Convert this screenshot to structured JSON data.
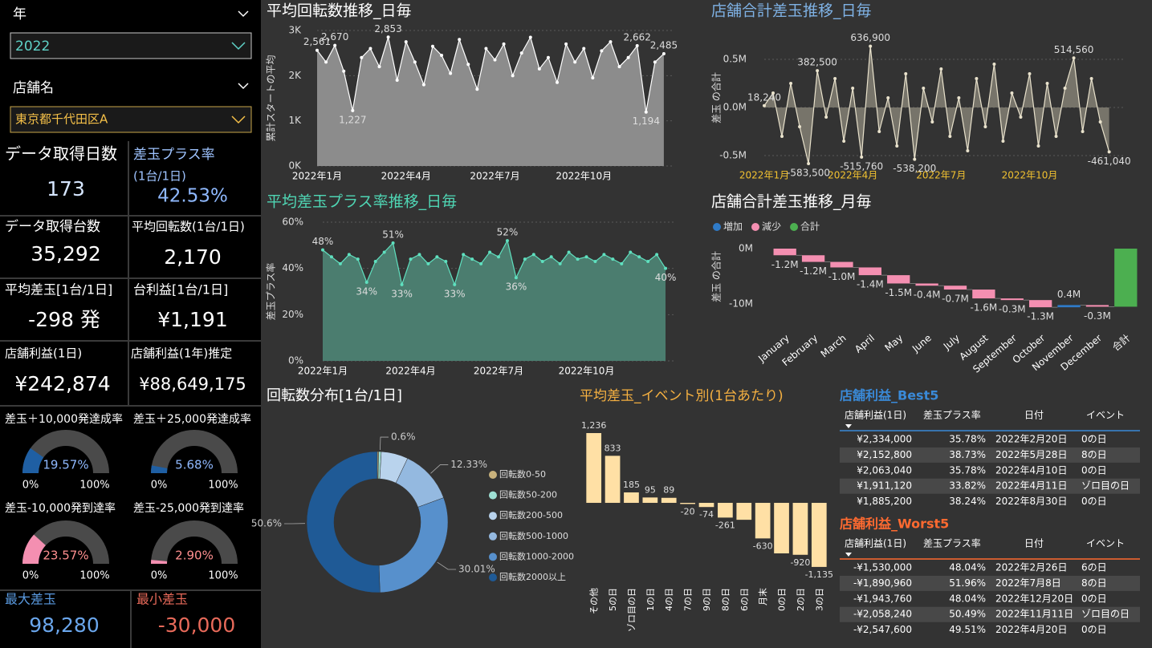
{
  "filters": [
    {
      "label": "年",
      "value": "2022"
    },
    {
      "label": "店舗名",
      "value": "東京都千代田区A"
    }
  ],
  "kpis": [
    {
      "label": "データ取得日数",
      "value": "173"
    },
    {
      "label": "差玉プラス率",
      "sublabel": "(1台/1日)",
      "value": "42.53%"
    },
    {
      "label": "データ取得台数",
      "value": "35,292"
    },
    {
      "label": "平均回転数(1台/1日)",
      "value": "2,170"
    },
    {
      "label": "平均差玉[1台/1日]",
      "value": "-298 発"
    },
    {
      "label": "台利益[1台/1日]",
      "value": "¥1,191"
    },
    {
      "label": "店舗利益(1日)",
      "value": "¥242,874"
    },
    {
      "label": "店舗利益(1年)推定",
      "value": "¥88,649,175"
    },
    {
      "label": "最大差玉",
      "value": "98,280"
    },
    {
      "label": "最小差玉",
      "value": "-30,000"
    }
  ],
  "gauges": [
    {
      "title": "差玉＋10,000発達成率",
      "value": 19.57,
      "value_label": "19.57%",
      "min": {
        "value": 0,
        "label": "0%"
      },
      "max": {
        "value": 100,
        "label": "100%"
      },
      "color": "#1f5fa3",
      "text_color": "#8fb9ff"
    },
    {
      "title": "差玉＋25,000発達成率",
      "value": 5.68,
      "value_label": "5.68%",
      "min": {
        "value": 0,
        "label": "0%"
      },
      "max": {
        "value": 100,
        "label": "100%"
      },
      "color": "#1f5fa3",
      "text_color": "#8fb9ff"
    },
    {
      "title": "差玉-10,000発到達率",
      "value": 23.57,
      "value_label": "23.57%",
      "min": {
        "value": 0,
        "label": "0%"
      },
      "max": {
        "value": 100,
        "label": "100%"
      },
      "color": "#f48fb1",
      "text_color": "#ff8f8f"
    },
    {
      "title": "差玉-25,000発到達率",
      "value": 2.9,
      "value_label": "2.90%",
      "min": {
        "value": 0,
        "label": "0%"
      },
      "max": {
        "value": 100,
        "label": "100%"
      },
      "color": "#f48fb1",
      "text_color": "#ff8f8f"
    }
  ],
  "chart_data": [
    {
      "type": "line",
      "title": "平均回転数推移_日毎",
      "y_label": "累計スタートの平均",
      "grid": true,
      "xlim": [
        1,
        13
      ],
      "xticks": [
        {
          "value": 1,
          "label": "2022年1月"
        },
        {
          "value": 4,
          "label": "2022年4月"
        },
        {
          "value": 7,
          "label": "2022年7月"
        },
        {
          "value": 10,
          "label": "2022年10月"
        }
      ],
      "ylim": [
        0,
        3000
      ],
      "yticks": [
        {
          "value": 0,
          "label": "0K"
        },
        {
          "value": 1000,
          "label": "1K"
        },
        {
          "value": 2000,
          "label": "2K"
        },
        {
          "value": 3000,
          "label": "3K"
        }
      ],
      "x": [
        1,
        1.3,
        1.6,
        1.9,
        2.2,
        2.5,
        2.8,
        3.1,
        3.4,
        3.7,
        4,
        4.3,
        4.6,
        4.9,
        5.2,
        5.5,
        5.8,
        6.1,
        6.4,
        6.7,
        7,
        7.3,
        7.6,
        7.9,
        8.2,
        8.5,
        8.8,
        9.1,
        9.4,
        9.7,
        10,
        10.3,
        10.6,
        10.9,
        11.2,
        11.5,
        11.8,
        12.1,
        12.4,
        12.7
      ],
      "series": [
        {
          "color": "#ffffff",
          "fill": "#8c8c8c",
          "values": [
            2561,
            2300,
            2670,
            2100,
            1227,
            2400,
            2600,
            2200,
            2853,
            1900,
            2750,
            2300,
            1800,
            2650,
            2450,
            2050,
            2800,
            2250,
            1700,
            2600,
            2350,
            2700,
            2000,
            2500,
            2850,
            2150,
            2400,
            1850,
            2700,
            2300,
            2600,
            1950,
            2550,
            2750,
            2200,
            2400,
            2662,
            1194,
            2300,
            2485
          ],
          "value_labels": [
            "2,561",
            null,
            "2,670",
            null,
            "1,227",
            null,
            null,
            null,
            "2,853",
            null,
            null,
            null,
            null,
            null,
            null,
            null,
            null,
            null,
            null,
            null,
            null,
            null,
            null,
            null,
            null,
            null,
            null,
            null,
            null,
            null,
            null,
            null,
            null,
            null,
            null,
            null,
            "2,662",
            "1,194",
            null,
            "2,485"
          ]
        }
      ]
    },
    {
      "type": "line",
      "title": "店舗合計差玉推移_日毎",
      "y_label": "差玉 の合計",
      "grid": true,
      "xlim": [
        1,
        13.2
      ],
      "xticks": [
        {
          "value": 1,
          "label": "2022年1月"
        },
        {
          "value": 4,
          "label": "2022年4月"
        },
        {
          "value": 7,
          "label": "2022年7月"
        },
        {
          "value": 10,
          "label": "2022年10月"
        }
      ],
      "ylim": [
        -600000,
        800000
      ],
      "yticks": [
        {
          "value": -500000,
          "label": "-0.5M"
        },
        {
          "value": 0,
          "label": "0.0M"
        },
        {
          "value": 500000,
          "label": "0.5M"
        }
      ],
      "x": [
        1,
        1.3,
        1.6,
        1.9,
        2.2,
        2.5,
        2.8,
        3.1,
        3.4,
        3.7,
        4,
        4.3,
        4.6,
        4.9,
        5.2,
        5.5,
        5.8,
        6.1,
        6.4,
        6.7,
        7,
        7.3,
        7.6,
        7.9,
        8.2,
        8.5,
        8.8,
        9.1,
        9.4,
        9.7,
        10,
        10.3,
        10.6,
        10.9,
        11.2,
        11.5,
        11.8,
        12.1,
        12.4,
        12.7
      ],
      "series": [
        {
          "color": "#e9e2cc",
          "fill": "#77746a",
          "values": [
            18240,
            150000,
            -300000,
            250000,
            -200000,
            -583500,
            382500,
            -100000,
            300000,
            -350000,
            200000,
            -515760,
            636900,
            -250000,
            100000,
            -400000,
            350000,
            -538200,
            200000,
            -150000,
            400000,
            -300000,
            100000,
            -450000,
            300000,
            -200000,
            450000,
            -350000,
            150000,
            -100000,
            350000,
            -400000,
            250000,
            -300000,
            200000,
            514560,
            -250000,
            300000,
            -150000,
            -461040
          ],
          "value_labels": [
            "18,240",
            null,
            null,
            null,
            null,
            "-583,500",
            "382,500",
            null,
            null,
            null,
            null,
            "-515,760",
            "636,900",
            null,
            null,
            null,
            null,
            "-538,200",
            null,
            null,
            null,
            null,
            null,
            null,
            null,
            null,
            null,
            null,
            null,
            null,
            null,
            null,
            null,
            null,
            null,
            "514,560",
            null,
            null,
            null,
            "-461,040"
          ]
        }
      ]
    },
    {
      "type": "line",
      "title": "平均差玉プラス率推移_日毎",
      "y_label": "差玉プラス率",
      "grid": true,
      "xlim": [
        1,
        13
      ],
      "xticks": [
        {
          "value": 1,
          "label": "2022年1月"
        },
        {
          "value": 4,
          "label": "2022年4月"
        },
        {
          "value": 7,
          "label": "2022年7月"
        },
        {
          "value": 10,
          "label": "2022年10月"
        }
      ],
      "ylim": [
        0,
        60
      ],
      "yticks": [
        {
          "value": 0,
          "label": "0%"
        },
        {
          "value": 20,
          "label": "20%"
        },
        {
          "value": 40,
          "label": "40%"
        },
        {
          "value": 60,
          "label": "60%"
        }
      ],
      "x": [
        1,
        1.3,
        1.6,
        1.9,
        2.2,
        2.5,
        2.8,
        3.1,
        3.4,
        3.7,
        4,
        4.3,
        4.6,
        4.9,
        5.2,
        5.5,
        5.8,
        6.1,
        6.4,
        6.7,
        7,
        7.3,
        7.6,
        7.9,
        8.2,
        8.5,
        8.8,
        9.1,
        9.4,
        9.7,
        10,
        10.3,
        10.6,
        10.9,
        11.2,
        11.5,
        11.8,
        12.1,
        12.4,
        12.7
      ],
      "series": [
        {
          "color": "#5fe0bf",
          "fill": "#4b7d6f",
          "values": [
            48,
            45,
            42,
            46,
            44,
            34,
            43,
            47,
            51,
            33,
            44,
            46,
            42,
            45,
            43,
            33,
            46,
            44,
            42,
            47,
            45,
            52,
            36,
            44,
            46,
            43,
            45,
            42,
            47,
            44,
            45,
            43,
            46,
            44,
            42,
            47,
            45,
            43,
            46,
            40
          ],
          "value_labels": [
            "48%",
            null,
            null,
            null,
            null,
            "34%",
            null,
            null,
            "51%",
            "33%",
            null,
            null,
            null,
            null,
            null,
            "33%",
            null,
            null,
            null,
            null,
            null,
            "52%",
            "36%",
            null,
            null,
            null,
            null,
            null,
            null,
            null,
            null,
            null,
            null,
            null,
            null,
            null,
            null,
            null,
            null,
            "40%"
          ]
        }
      ]
    },
    {
      "type": "waterfall",
      "title": "店舗合計差玉推移_月毎",
      "y_label": "差玉 の合計",
      "legend": [
        {
          "name": "増加",
          "color": "#2f7bc8"
        },
        {
          "name": "減少",
          "color": "#f48fb1"
        },
        {
          "name": "合計",
          "color": "#4caf50"
        }
      ],
      "categories": [
        "January",
        "February",
        "March",
        "April",
        "May",
        "June",
        "July",
        "August",
        "September",
        "October",
        "November",
        "December",
        "合計"
      ],
      "values": [
        -1.2,
        -1.2,
        -1.0,
        -1.4,
        -1.5,
        -0.4,
        -0.7,
        -1.6,
        -0.3,
        -1.3,
        0.4,
        -0.3,
        -10.5
      ],
      "value_labels": [
        "-1.2M",
        "-1.2M",
        "-1.0M",
        "-1.4M",
        "-1.5M",
        "-0.4M",
        "-0.7M",
        "-1.6M",
        "-0.3M",
        "-1.3M",
        "0.4M",
        "-0.3M",
        null
      ],
      "ylim": [
        -11,
        1.5
      ],
      "yticks": [
        {
          "value": 0,
          "label": "0M"
        },
        {
          "value": -10,
          "label": "-10M"
        }
      ]
    },
    {
      "type": "donut",
      "title": "回転数分布[1台/1日]",
      "categories": [
        "回転数0-50",
        "回転数50-200",
        "回転数200-500",
        "回転数500-1000",
        "回転数1000-2000",
        "回転数2000以上"
      ],
      "values": [
        0.3,
        0.6,
        6.16,
        12.33,
        30.01,
        50.6
      ],
      "value_labels": [
        null,
        "0.6%",
        null,
        "12.33%",
        "30.01%",
        "50.6%"
      ],
      "colors": [
        "#c9b27c",
        "#9ee0d4",
        "#b9d3ed",
        "#94b9e0",
        "#5790cc",
        "#1f5a96"
      ]
    },
    {
      "type": "bar",
      "title": "平均差玉_イベント別(1台あたり)",
      "color": "#ffe0a5",
      "categories": [
        "その他",
        "5の日",
        "ゾロ目の日",
        "1の日",
        "4の日",
        "7の日",
        "9の日",
        "8の日",
        "6の日",
        "月末",
        "0の日",
        "2の日",
        "3の日"
      ],
      "values": [
        1236,
        833,
        185,
        95,
        89,
        -20,
        -74,
        -261,
        -300,
        -630,
        -895,
        -920,
        -1135
      ],
      "value_labels": [
        "1,236",
        "833",
        "185",
        "95",
        "89",
        "-20",
        "-74",
        "-261",
        null,
        "-630",
        null,
        "-920",
        "-1,135"
      ],
      "ylim": [
        -1250,
        1300
      ]
    }
  ],
  "tables": [
    {
      "title": "店舗利益_Best5",
      "color": "#3a8ad8",
      "columns": [
        "店舗利益(1日)",
        "差玉プラス率",
        "日付",
        "イベント"
      ],
      "rows": [
        [
          "¥2,334,000",
          "35.78%",
          "2022年2月20日",
          "0の日"
        ],
        [
          "¥2,152,800",
          "38.73%",
          "2022年5月28日",
          "8の日"
        ],
        [
          "¥2,063,040",
          "35.78%",
          "2022年4月10日",
          "0の日"
        ],
        [
          "¥1,911,120",
          "33.82%",
          "2022年4月11日",
          "ゾロ目の日"
        ],
        [
          "¥1,885,200",
          "38.24%",
          "2022年8月30日",
          "0の日"
        ]
      ]
    },
    {
      "title": "店舗利益_Worst5",
      "color": "#ff6a30",
      "columns": [
        "店舗利益(1日)",
        "差玉プラス率",
        "日付",
        "イベント"
      ],
      "rows": [
        [
          "-¥1,530,000",
          "48.04%",
          "2022年2月26日",
          "6の日"
        ],
        [
          "-¥1,890,960",
          "51.96%",
          "2022年7月8日",
          "8の日"
        ],
        [
          "-¥1,943,760",
          "48.04%",
          "2022年12月20日",
          "0の日"
        ],
        [
          "-¥2,058,240",
          "50.49%",
          "2022年11月11日",
          "ゾロ目の日"
        ],
        [
          "-¥2,547,600",
          "49.51%",
          "2022年4月20日",
          "0の日"
        ]
      ]
    }
  ]
}
